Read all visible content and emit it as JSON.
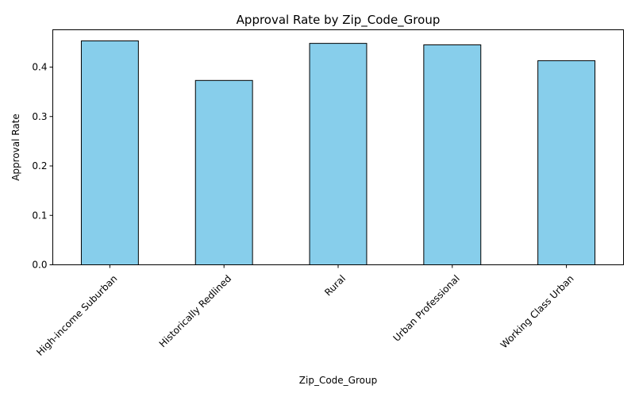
{
  "chart_data": {
    "type": "bar",
    "title": "Approval Rate by Zip_Code_Group",
    "xlabel": "Zip_Code_Group",
    "ylabel": "Approval Rate",
    "categories": [
      "High-income Suburban",
      "Historically Redlined",
      "Rural",
      "Urban Professional",
      "Working Class Urban"
    ],
    "values": [
      0.453,
      0.373,
      0.448,
      0.445,
      0.413
    ],
    "ylim": [
      0,
      0.4755
    ],
    "yticks": [
      0.0,
      0.1,
      0.2,
      0.3,
      0.4
    ],
    "ytick_labels": [
      "0.0",
      "0.1",
      "0.2",
      "0.3",
      "0.4"
    ],
    "xtick_rotation": 45,
    "grid": false,
    "legend": "none",
    "bar_color": "#87CEEB",
    "bar_edge_color": "#000000"
  }
}
